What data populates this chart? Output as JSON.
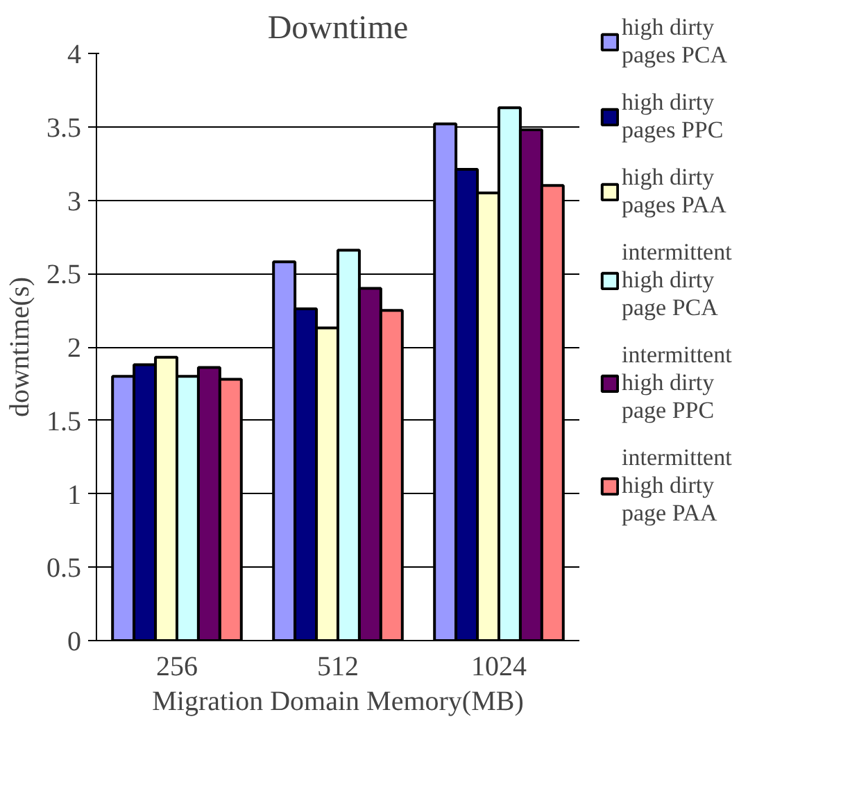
{
  "chart_data": {
    "type": "bar",
    "title": "Downtime",
    "xlabel": "Migration Domain Memory(MB)",
    "ylabel": "downtime(s)",
    "categories": [
      "256",
      "512",
      "1024"
    ],
    "series": [
      {
        "name": "high dirty pages PCA",
        "color": "#9999ff",
        "values": [
          1.8,
          2.58,
          3.52
        ]
      },
      {
        "name": "high dirty pages PPC",
        "color": "#000080",
        "values": [
          1.88,
          2.26,
          3.21
        ]
      },
      {
        "name": "high dirty pages PAA",
        "color": "#ffffcc",
        "values": [
          1.93,
          2.13,
          3.05
        ]
      },
      {
        "name": "intermittent high dirty page PCA",
        "color": "#ccffff",
        "values": [
          1.8,
          2.66,
          3.63
        ]
      },
      {
        "name": "intermittent high dirty page PPC",
        "color": "#660066",
        "values": [
          1.86,
          2.4,
          3.48
        ]
      },
      {
        "name": "intermittent high dirty page PAA",
        "color": "#ff8080",
        "values": [
          1.78,
          2.25,
          3.1
        ]
      }
    ],
    "ylim": [
      0,
      4
    ],
    "yticks": [
      0,
      0.5,
      1,
      1.5,
      2,
      2.5,
      3,
      3.5,
      4
    ],
    "grid": "y",
    "legend": "right"
  }
}
